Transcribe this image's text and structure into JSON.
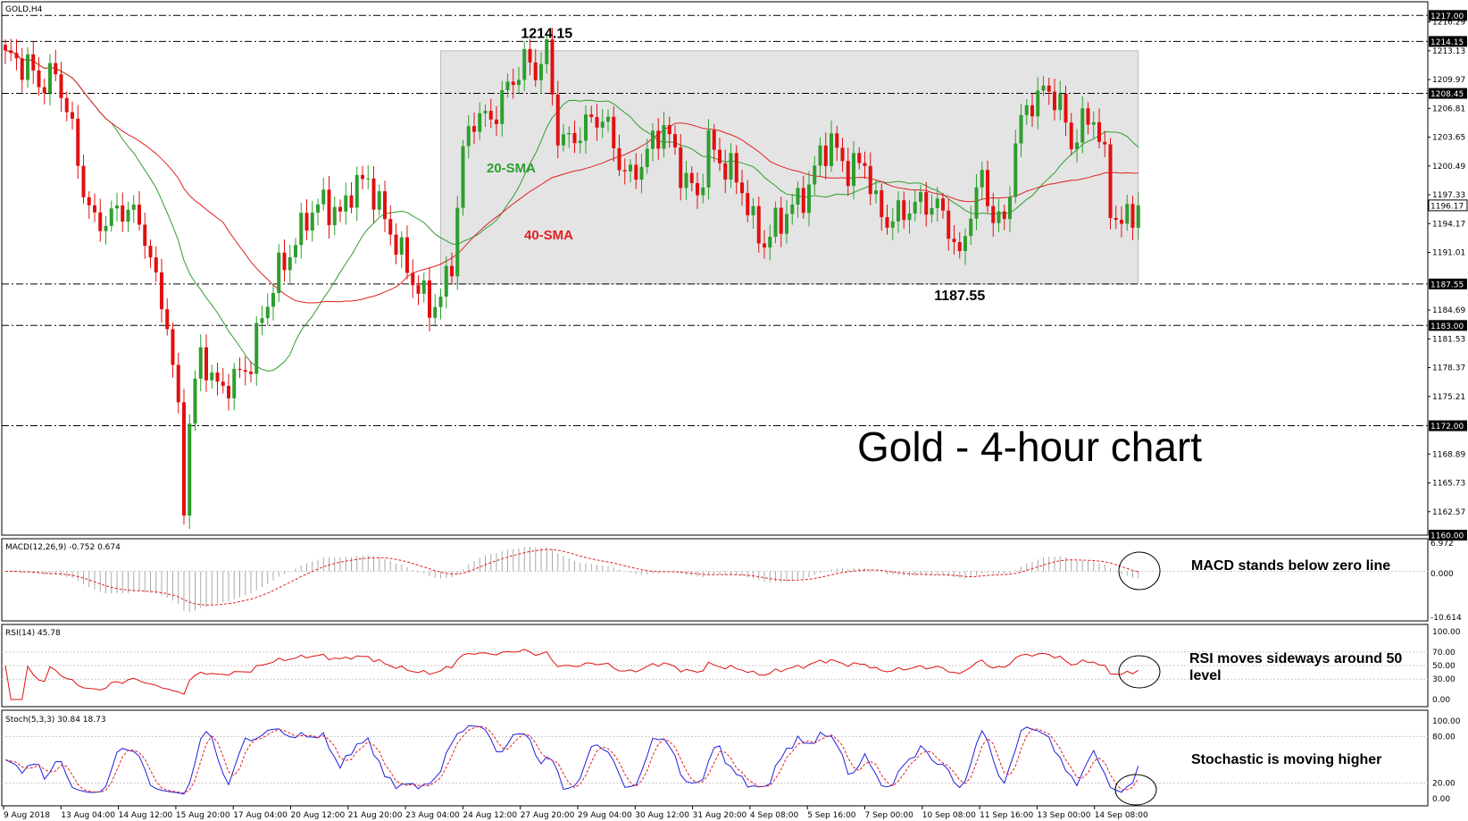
{
  "chart_data": {
    "type": "candlestick",
    "symbol_label": "GOLD,H4",
    "title": "Gold - 4-hour chart",
    "price_axis": {
      "min": 1160.0,
      "max": 1218.5,
      "ticks": [
        "1216.29",
        "1213.13",
        "1209.97",
        "1206.81",
        "1203.65",
        "1200.49",
        "1197.33",
        "1194.17",
        "1191.01",
        "1184.69",
        "1181.53",
        "1178.37",
        "1175.21",
        "1168.89",
        "1165.73",
        "1162.57"
      ]
    },
    "levels": [
      {
        "label": "1217.00",
        "value": 1217.0
      },
      {
        "label": "1214.15",
        "value": 1214.15
      },
      {
        "label": "1208.45",
        "value": 1208.45
      },
      {
        "label": "1187.55",
        "value": 1187.55
      },
      {
        "label": "1183.00",
        "value": 1183.0
      },
      {
        "label": "1172.00",
        "value": 1172.0
      },
      {
        "label": "1160.00",
        "value": 1160.0
      }
    ],
    "current_price": "1196.17",
    "range_box": {
      "from_bar": 78,
      "to_bar": 203,
      "high": 1213.13,
      "low": 1187.55
    },
    "annotations": {
      "high": "1214.15",
      "low": "1187.55",
      "sma20": "20-SMA",
      "sma40": "40-SMA"
    },
    "x_labels": [
      "9 Aug 2018",
      "13 Aug 04:00",
      "14 Aug 12:00",
      "15 Aug 20:00",
      "17 Aug 04:00",
      "20 Aug 12:00",
      "21 Aug 20:00",
      "23 Aug 04:00",
      "24 Aug 12:00",
      "27 Aug 20:00",
      "29 Aug 04:00",
      "30 Aug 12:00",
      "31 Aug 20:00",
      "4 Sep 08:00",
      "5 Sep 16:00",
      "7 Sep 00:00",
      "10 Sep 08:00",
      "11 Sep 16:00",
      "13 Sep 00:00",
      "14 Sep 08:00"
    ],
    "close_path": [
      [
        0,
        1212.5
      ],
      [
        4,
        1211.5
      ],
      [
        6,
        1209.5
      ],
      [
        9,
        1210.5
      ],
      [
        11,
        1207
      ],
      [
        14,
        1198
      ],
      [
        16,
        1194
      ],
      [
        19,
        1195
      ],
      [
        22,
        1196
      ],
      [
        25,
        1193
      ],
      [
        27,
        1187.5
      ],
      [
        29,
        1183.5
      ],
      [
        30,
        1178
      ],
      [
        31,
        1173.5
      ],
      [
        32,
        1163.5
      ],
      [
        33,
        1172.5
      ],
      [
        35,
        1180
      ],
      [
        38,
        1176
      ],
      [
        41,
        1177
      ],
      [
        44,
        1179
      ],
      [
        46,
        1184
      ],
      [
        49,
        1189
      ],
      [
        52,
        1192
      ],
      [
        54,
        1195
      ],
      [
        57,
        1196.5
      ],
      [
        60,
        1195
      ],
      [
        62,
        1198
      ],
      [
        65,
        1199
      ],
      [
        67,
        1196
      ],
      [
        70,
        1192
      ],
      [
        73,
        1188
      ],
      [
        76,
        1185
      ],
      [
        78,
        1186
      ],
      [
        80,
        1190
      ],
      [
        82,
        1202
      ],
      [
        84,
        1206
      ],
      [
        87,
        1205.5
      ],
      [
        90,
        1209
      ],
      [
        93,
        1212
      ],
      [
        95,
        1211
      ],
      [
        97,
        1213
      ],
      [
        99,
        1204
      ],
      [
        101,
        1203
      ],
      [
        104,
        1205
      ],
      [
        107,
        1206
      ],
      [
        110,
        1201
      ],
      [
        112,
        1199
      ],
      [
        115,
        1202
      ],
      [
        118,
        1205
      ],
      [
        121,
        1200
      ],
      [
        124,
        1197
      ],
      [
        126,
        1203
      ],
      [
        128,
        1201
      ],
      [
        130,
        1200
      ],
      [
        132,
        1198
      ],
      [
        134,
        1194
      ],
      [
        136,
        1192
      ],
      [
        138,
        1194
      ],
      [
        141,
        1196
      ],
      [
        144,
        1198
      ],
      [
        146,
        1202
      ],
      [
        148,
        1203
      ],
      [
        151,
        1200
      ],
      [
        154,
        1201
      ],
      [
        156,
        1196
      ],
      [
        158,
        1194.5
      ],
      [
        160,
        1195
      ],
      [
        162,
        1196
      ],
      [
        165,
        1196.5
      ],
      [
        167,
        1196
      ],
      [
        169,
        1194
      ],
      [
        171,
        1190
      ],
      [
        173,
        1196
      ],
      [
        175,
        1199
      ],
      [
        177,
        1195
      ],
      [
        179,
        1194
      ],
      [
        181,
        1203
      ],
      [
        183,
        1207
      ],
      [
        185,
        1208
      ],
      [
        187,
        1209
      ],
      [
        189,
        1207
      ],
      [
        191,
        1203
      ],
      [
        193,
        1205
      ],
      [
        195,
        1206
      ],
      [
        197,
        1201
      ],
      [
        198,
        1196
      ],
      [
        200,
        1194
      ],
      [
        202,
        1195.5
      ],
      [
        203,
        1196.2
      ]
    ],
    "macd": {
      "label": "MACD(12,26,9) -0.752 0.674",
      "axis_max": "6.972",
      "axis_zero": "0.000",
      "axis_min": "-10.614",
      "circle_note": "MACD stands below zero line"
    },
    "rsi": {
      "label": "RSI(14) 45.78",
      "ticks": [
        "100.00",
        "70.00",
        "50.00",
        "30.00",
        "0.00"
      ],
      "circle_note": "RSI moves sideways around 50 level"
    },
    "stoch": {
      "label": "Stoch(5,3,3) 30.84 18.73",
      "ticks": [
        "100.00",
        "80.00",
        "20.00",
        "0.00"
      ],
      "circle_note": "Stochastic is moving higher"
    },
    "colors": {
      "bull": "#2e9e2e",
      "bear": "#e01010",
      "sma20": "#2e9e2e",
      "sma40": "#e02020",
      "stoch_main": "#1f1fe0",
      "stoch_signal": "#e02020",
      "range_fill": "#e4e4e4"
    }
  }
}
